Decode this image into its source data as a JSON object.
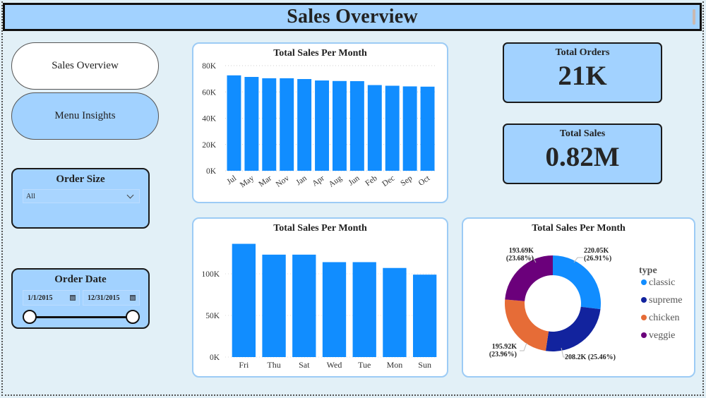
{
  "header": {
    "title": "Sales Overview"
  },
  "nav": {
    "buttons": [
      {
        "label": "Sales Overview",
        "active": true
      },
      {
        "label": "Menu Insights",
        "active": false
      }
    ]
  },
  "filters": {
    "order_size": {
      "title": "Order Size",
      "selected": "All"
    },
    "order_date": {
      "title": "Order Date",
      "start": "1/1/2015",
      "end": "12/31/2015"
    }
  },
  "kpis": {
    "total_orders": {
      "label": "Total Orders",
      "value": "21K"
    },
    "total_sales": {
      "label": "Total Sales",
      "value": "0.82M"
    }
  },
  "colors": {
    "bar": "#118dff",
    "classic": "#118dff",
    "supreme": "#12239e",
    "chicken": "#e66c37",
    "veggie": "#6b007b",
    "header_bg": "#a2d2ff",
    "page_bg": "#e2f0f7"
  },
  "chart_data": [
    {
      "type": "bar",
      "title": "Total Sales Per Month",
      "categories": [
        "Jul",
        "May",
        "Mar",
        "Nov",
        "Jan",
        "Apr",
        "Aug",
        "Jun",
        "Feb",
        "Dec",
        "Sep",
        "Oct"
      ],
      "values": [
        72.6,
        71.4,
        70.4,
        70.4,
        69.8,
        68.7,
        68.3,
        68.2,
        65.2,
        64.7,
        64.2,
        64.0
      ],
      "value_unit": "K",
      "yticks": [
        "0K",
        "20K",
        "40K",
        "60K",
        "80K"
      ],
      "ylim": [
        0,
        80
      ],
      "xlabel": "",
      "ylabel": "",
      "grid": true
    },
    {
      "type": "bar",
      "title": "Total Sales Per Month",
      "categories": [
        "Fri",
        "Thu",
        "Sat",
        "Wed",
        "Tue",
        "Mon",
        "Sun"
      ],
      "values": [
        136,
        123,
        123,
        114,
        114,
        107,
        99
      ],
      "value_unit": "K",
      "yticks": [
        "0K",
        "50K",
        "100K"
      ],
      "ylim": [
        0,
        140
      ],
      "xlabel": "",
      "ylabel": "",
      "grid": true
    },
    {
      "type": "pie",
      "donut": true,
      "title": "Total Sales Per Month",
      "legend_title": "type",
      "legend_position": "right",
      "labels": [
        "classic",
        "supreme",
        "chicken",
        "veggie"
      ],
      "values": [
        220.05,
        208.2,
        195.92,
        193.69
      ],
      "percents": [
        26.91,
        25.46,
        23.96,
        23.68
      ],
      "data_labels": [
        "220.05K (26.91%)",
        "208.2K (25.46%)",
        "195.92K (23.96%)",
        "193.69K (23.68%)"
      ]
    }
  ]
}
